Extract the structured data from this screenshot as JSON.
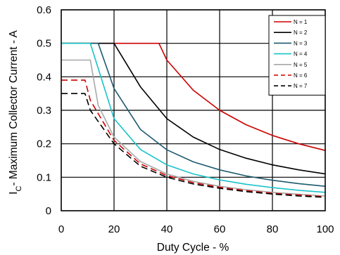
{
  "chart_data": {
    "type": "line",
    "xlabel": "Duty Cycle - %",
    "ylabel_prefix": "I",
    "ylabel_sub": "C",
    "ylabel_rest": "- Maximum Collector Current - A",
    "xlim": [
      0,
      100
    ],
    "ylim": [
      0,
      0.6
    ],
    "xticks": [
      0,
      20,
      40,
      60,
      80,
      100
    ],
    "yticks": [
      0,
      0.1,
      0.2,
      0.3,
      0.4,
      0.5,
      0.6
    ],
    "ytick_labels": [
      "0",
      "0.1",
      "0.2",
      "0.3",
      "0.4",
      "0.5",
      "0.6"
    ],
    "grid": true,
    "legend_position": "top-right",
    "series": [
      {
        "name": "N = 1",
        "color": "#cc0000",
        "dash": "solid",
        "x": [
          0,
          37,
          40,
          50,
          60,
          70,
          80,
          90,
          100
        ],
        "y": [
          0.5,
          0.5,
          0.45,
          0.36,
          0.3,
          0.257,
          0.225,
          0.2,
          0.18
        ]
      },
      {
        "name": "N = 2",
        "color": "#000000",
        "dash": "solid",
        "x": [
          0,
          20,
          30,
          40,
          50,
          60,
          70,
          80,
          90,
          100
        ],
        "y": [
          0.5,
          0.5,
          0.37,
          0.275,
          0.22,
          0.183,
          0.157,
          0.137,
          0.122,
          0.11
        ]
      },
      {
        "name": "N = 3",
        "color": "#1e5a6e",
        "dash": "solid",
        "x": [
          0,
          14,
          20,
          30,
          40,
          50,
          60,
          70,
          80,
          90,
          100
        ],
        "y": [
          0.5,
          0.5,
          0.365,
          0.243,
          0.182,
          0.146,
          0.122,
          0.104,
          0.091,
          0.081,
          0.073
        ]
      },
      {
        "name": "N = 4",
        "color": "#19c3c8",
        "dash": "solid",
        "x": [
          0,
          11,
          20,
          30,
          40,
          50,
          60,
          70,
          80,
          90,
          100
        ],
        "y": [
          0.5,
          0.5,
          0.275,
          0.183,
          0.137,
          0.11,
          0.092,
          0.079,
          0.069,
          0.061,
          0.055
        ]
      },
      {
        "name": "N = 5",
        "color": "#a8a8a8",
        "dash": "solid",
        "x": [
          0,
          11,
          14,
          20,
          30,
          40,
          50,
          60,
          70,
          80,
          90,
          100
        ],
        "y": [
          0.45,
          0.45,
          0.315,
          0.22,
          0.147,
          0.11,
          0.088,
          0.073,
          0.063,
          0.055,
          0.049,
          0.044
        ]
      },
      {
        "name": "N = 6",
        "color": "#cc0000",
        "dash": "dashed",
        "x": [
          0,
          9,
          11,
          20,
          30,
          40,
          50,
          60,
          70,
          80,
          90,
          100
        ],
        "y": [
          0.39,
          0.39,
          0.33,
          0.21,
          0.14,
          0.105,
          0.084,
          0.07,
          0.06,
          0.052,
          0.047,
          0.042
        ]
      },
      {
        "name": "N = 7",
        "color": "#000000",
        "dash": "dashed",
        "x": [
          0,
          9,
          11,
          20,
          30,
          40,
          50,
          60,
          70,
          80,
          90,
          100
        ],
        "y": [
          0.35,
          0.35,
          0.3,
          0.2,
          0.133,
          0.1,
          0.08,
          0.067,
          0.057,
          0.05,
          0.044,
          0.04
        ]
      }
    ]
  }
}
